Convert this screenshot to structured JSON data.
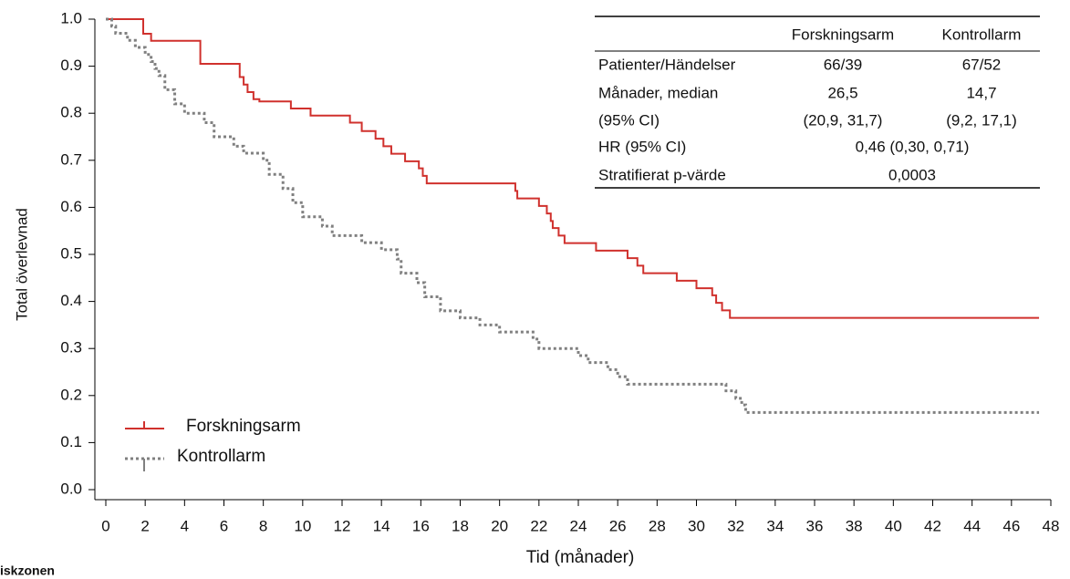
{
  "chart_data": {
    "type": "step",
    "y_label": "Total överlevnad",
    "x_label": "Tid (månader)",
    "footnote": "iskzonen",
    "xlim": [
      0,
      48
    ],
    "xticks": [
      0,
      2,
      4,
      6,
      8,
      10,
      12,
      14,
      16,
      18,
      20,
      22,
      24,
      26,
      28,
      30,
      32,
      34,
      36,
      38,
      40,
      42,
      44,
      46,
      48
    ],
    "ylim": [
      0,
      1
    ],
    "yticks": [
      {
        "value": 0,
        "label": "0.0"
      },
      0.1,
      0.2,
      0.3,
      0.4,
      0.5,
      0.6,
      0.7,
      0.8,
      0.9,
      {
        "value": 1,
        "label": "1.0"
      }
    ],
    "series": [
      {
        "name": "Forskningsarm",
        "color": "#d0312d",
        "dashed": false,
        "x": [
          0,
          1.9,
          2.3,
          4.8,
          6.8,
          7.0,
          7.2,
          7.5,
          7.8,
          9.4,
          10.4,
          12.4,
          13.0,
          13.7,
          14.1,
          14.5,
          15.2,
          15.9,
          16.1,
          16.3,
          20.8,
          20.9,
          22.0,
          22.4,
          22.6,
          22.7,
          23.0,
          23.3,
          24.9,
          26.5,
          27.0,
          27.3,
          29.0,
          30.0,
          30.8,
          31.0,
          31.3,
          31.7,
          47.4
        ],
        "values": [
          1.0,
          0.969,
          0.954,
          0.905,
          0.877,
          0.861,
          0.845,
          0.83,
          0.825,
          0.81,
          0.795,
          0.78,
          0.762,
          0.746,
          0.73,
          0.714,
          0.698,
          0.683,
          0.667,
          0.651,
          0.635,
          0.619,
          0.603,
          0.587,
          0.571,
          0.556,
          0.54,
          0.524,
          0.508,
          0.492,
          0.476,
          0.46,
          0.444,
          0.428,
          0.413,
          0.397,
          0.381,
          0.365,
          0.365
        ]
      },
      {
        "name": "Kontrollarm",
        "color": "#808080",
        "dashed": true,
        "x": [
          0,
          0.3,
          0.5,
          1.1,
          1.5,
          2.0,
          2.3,
          2.5,
          2.7,
          3.0,
          3.5,
          4.0,
          5.0,
          5.5,
          6.5,
          7.0,
          8.0,
          8.3,
          9.0,
          9.5,
          10.0,
          11.0,
          11.5,
          13.0,
          14.0,
          14.8,
          15.0,
          15.8,
          16.2,
          17.0,
          18.0,
          19.0,
          20.0,
          21.7,
          22.0,
          24.0,
          24.5,
          25.5,
          26.0,
          26.5,
          31.5,
          32.0,
          32.3,
          32.5,
          47.4
        ],
        "values": [
          1.0,
          0.985,
          0.97,
          0.955,
          0.94,
          0.925,
          0.91,
          0.895,
          0.88,
          0.85,
          0.82,
          0.8,
          0.78,
          0.75,
          0.73,
          0.715,
          0.7,
          0.67,
          0.64,
          0.61,
          0.58,
          0.56,
          0.54,
          0.525,
          0.51,
          0.49,
          0.46,
          0.44,
          0.41,
          0.38,
          0.365,
          0.35,
          0.335,
          0.32,
          0.3,
          0.285,
          0.27,
          0.255,
          0.24,
          0.224,
          0.21,
          0.194,
          0.18,
          0.164,
          0.164
        ]
      }
    ],
    "table": {
      "columns": [
        "Forskningsarm",
        "Kontrollarm"
      ],
      "rows": [
        [
          "Patienter/Händelser",
          "66/39",
          "67/52"
        ],
        [
          "Månader, median",
          "26,5",
          "14,7"
        ],
        [
          "(95% CI)",
          "(20,9, 31,7)",
          "(9,2, 17,1)"
        ],
        [
          "HR (95% CI)",
          "0,46 (0,30, 0,71)"
        ],
        [
          "Stratifierat p-värde",
          "0,0003"
        ]
      ]
    }
  }
}
